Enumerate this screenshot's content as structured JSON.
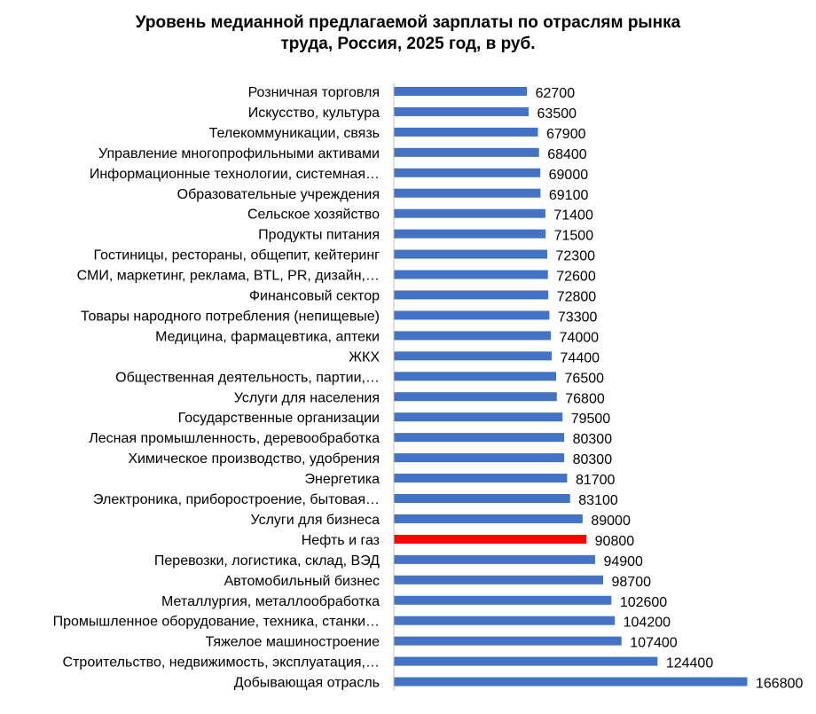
{
  "chart_data": {
    "type": "bar",
    "orientation": "horizontal",
    "title_line1": "Уровень медианной предлагаемой зарплаты по отраслям рынка",
    "title_line2": "труда, Россия, 2025 год, в руб.",
    "xlabel": "",
    "ylabel": "",
    "grid": false,
    "legend": "none",
    "colors": {
      "default": "#4472C4",
      "highlight": "#FF0000"
    },
    "highlight_category": "Нефть и газ",
    "categories": [
      "Розничная торговля",
      "Искусство, культура",
      "Телекоммуникации, связь",
      "Управление многопрофильными активами",
      "Информационные технологии, системная…",
      "Образовательные учреждения",
      "Сельское хозяйство",
      "Продукты питания",
      "Гостиницы, рестораны, общепит, кейтеринг",
      "СМИ, маркетинг, реклама, BTL, PR, дизайн,…",
      "Финансовый сектор",
      "Товары народного потребления (непищевые)",
      "Медицина, фармацевтика, аптеки",
      "ЖКХ",
      "Общественная деятельность, партии,…",
      "Услуги для населения",
      "Государственные организации",
      "Лесная промышленность, деревообработка",
      "Химическое производство, удобрения",
      "Энергетика",
      "Электроника, приборостроение, бытовая…",
      "Услуги для бизнеса",
      "Нефть и газ",
      "Перевозки, логистика, склад, ВЭД",
      "Автомобильный бизнес",
      "Металлургия, металлообработка",
      "Промышленное оборудование, техника, станки…",
      "Тяжелое машиностроение",
      "Строительство, недвижимость, эксплуатация,…",
      "Добывающая отрасль"
    ],
    "values": [
      62700,
      63500,
      67900,
      68400,
      69000,
      69100,
      71400,
      71500,
      72300,
      72600,
      72800,
      73300,
      74000,
      74400,
      76500,
      76800,
      79500,
      80300,
      80300,
      81700,
      83100,
      89000,
      90800,
      94900,
      98700,
      102600,
      104200,
      107400,
      124400,
      166800
    ],
    "xlim": [
      0,
      166800
    ]
  }
}
